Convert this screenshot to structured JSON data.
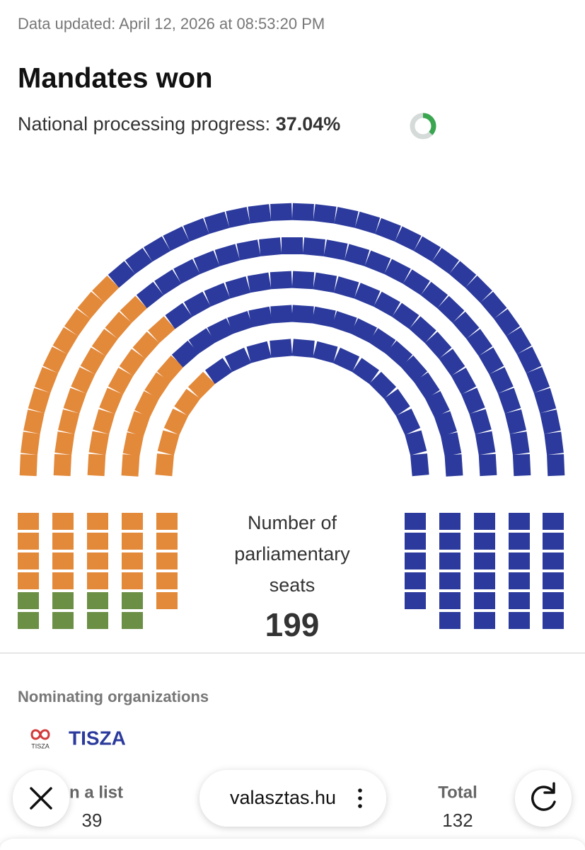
{
  "header": {
    "updated": "Data updated: April 12, 2026 at 08:53:20 PM",
    "title": "Mandates won",
    "progress_label": "National processing progress:",
    "progress": {
      "value": 37.04,
      "label": "37.04%"
    }
  },
  "chart_data": {
    "type": "parliament",
    "seats": [
      {
        "color": "#6b8f45",
        "count": 8
      },
      {
        "color": "#e3893a",
        "count": 59
      },
      {
        "color": "#2b3a9c",
        "count": 132
      }
    ],
    "center_label": [
      "Number of",
      "parliamentary",
      "seats"
    ],
    "total": 199
  },
  "organizations": {
    "title": "Nominating organizations",
    "logo_text": "TISZA",
    "name": "TISZA",
    "stats": [
      {
        "label": "n a list",
        "value": 39
      },
      {
        "label": "Total",
        "value": 132
      }
    ]
  },
  "browser": {
    "url": "valasztas.hu"
  }
}
